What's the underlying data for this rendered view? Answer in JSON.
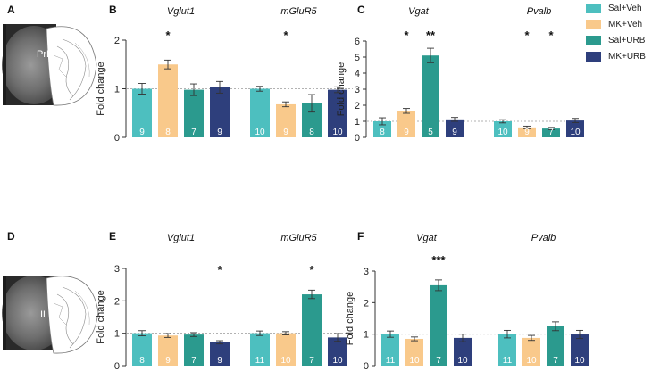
{
  "colors": {
    "sal_veh": "#4dbfbf",
    "mk_veh": "#f9c98b",
    "sal_urb": "#2b9a8e",
    "mk_urb": "#2e3f7c",
    "axis": "#333333",
    "reference_line": "#999999"
  },
  "legend": [
    {
      "label": "Sal+Veh",
      "color": "#4dbfbf"
    },
    {
      "label": "MK+Veh",
      "color": "#f9c98b"
    },
    {
      "label": "Sal+URB",
      "color": "#2b9a8e"
    },
    {
      "label": "MK+URB",
      "color": "#2e3f7c"
    }
  ],
  "panels": {
    "A": {
      "letter": "A",
      "region_label": "PrL",
      "image": "brain-section"
    },
    "D": {
      "letter": "D",
      "region_label": "IL",
      "image": "brain-section"
    }
  },
  "chart_data": [
    {
      "panel": "B",
      "type": "bar",
      "ylabel": "Fold change",
      "ylim": [
        0,
        2
      ],
      "yticks": [
        0,
        1,
        2
      ],
      "reference_value": 1,
      "groups": [
        {
          "title": "Vglut1",
          "values": [
            1.0,
            1.5,
            0.98,
            1.03
          ],
          "errors": [
            0.11,
            0.09,
            0.12,
            0.12
          ],
          "n": [
            "9",
            "8",
            "7",
            "9"
          ],
          "stars": [
            "",
            "*",
            "",
            ""
          ]
        },
        {
          "title": "mGluR5",
          "values": [
            1.0,
            0.68,
            0.7,
            0.98
          ],
          "errors": [
            0.05,
            0.05,
            0.18,
            0.06
          ],
          "n": [
            "10",
            "9",
            "8",
            "10"
          ],
          "stars": [
            "",
            "*",
            "",
            ""
          ]
        }
      ]
    },
    {
      "panel": "C",
      "type": "bar",
      "ylabel": "Fold change",
      "ylim": [
        0,
        6
      ],
      "yticks": [
        0,
        1,
        2,
        3,
        4,
        5,
        6
      ],
      "reference_value": 1,
      "groups": [
        {
          "title": "Vgat",
          "values": [
            1.0,
            1.65,
            5.1,
            1.12
          ],
          "errors": [
            0.22,
            0.15,
            0.45,
            0.12
          ],
          "n": [
            "8",
            "9",
            "5",
            "9"
          ],
          "stars": [
            "",
            "*",
            "**",
            ""
          ]
        },
        {
          "title": "Pvalb",
          "values": [
            1.0,
            0.62,
            0.55,
            1.05
          ],
          "errors": [
            0.1,
            0.08,
            0.07,
            0.13
          ],
          "n": [
            "10",
            "9",
            "7",
            "10"
          ],
          "stars": [
            "",
            "*",
            "*",
            ""
          ]
        }
      ]
    },
    {
      "panel": "E",
      "type": "bar",
      "ylabel": "Fold change",
      "ylim": [
        0,
        3
      ],
      "yticks": [
        0,
        1,
        2,
        3
      ],
      "reference_value": 1,
      "groups": [
        {
          "title": "Vglut1",
          "values": [
            1.0,
            0.93,
            0.96,
            0.72
          ],
          "errors": [
            0.08,
            0.06,
            0.06,
            0.05
          ],
          "n": [
            "8",
            "9",
            "7",
            "9"
          ],
          "stars": [
            "",
            "",
            "",
            "*"
          ]
        },
        {
          "title": "mGluR5",
          "values": [
            1.0,
            1.0,
            2.2,
            0.87
          ],
          "errors": [
            0.07,
            0.05,
            0.13,
            0.12
          ],
          "n": [
            "11",
            "10",
            "7",
            "10"
          ],
          "stars": [
            "",
            "",
            "*",
            ""
          ]
        }
      ]
    },
    {
      "panel": "F",
      "type": "bar",
      "ylabel": "Fold change",
      "ylim": [
        0,
        3
      ],
      "yticks": [
        0,
        1,
        2,
        3
      ],
      "reference_value": 1,
      "groups": [
        {
          "title": "Vgat",
          "values": [
            1.0,
            0.85,
            2.55,
            0.88
          ],
          "errors": [
            0.1,
            0.06,
            0.17,
            0.12
          ],
          "n": [
            "11",
            "10",
            "7",
            "10"
          ],
          "stars": [
            "",
            "",
            "***",
            ""
          ]
        },
        {
          "title": "Pvalb",
          "values": [
            1.0,
            0.88,
            1.25,
            0.99
          ],
          "errors": [
            0.12,
            0.08,
            0.14,
            0.13
          ],
          "n": [
            "11",
            "10",
            "7",
            "10"
          ],
          "stars": [
            "",
            "",
            "",
            ""
          ]
        }
      ]
    }
  ]
}
